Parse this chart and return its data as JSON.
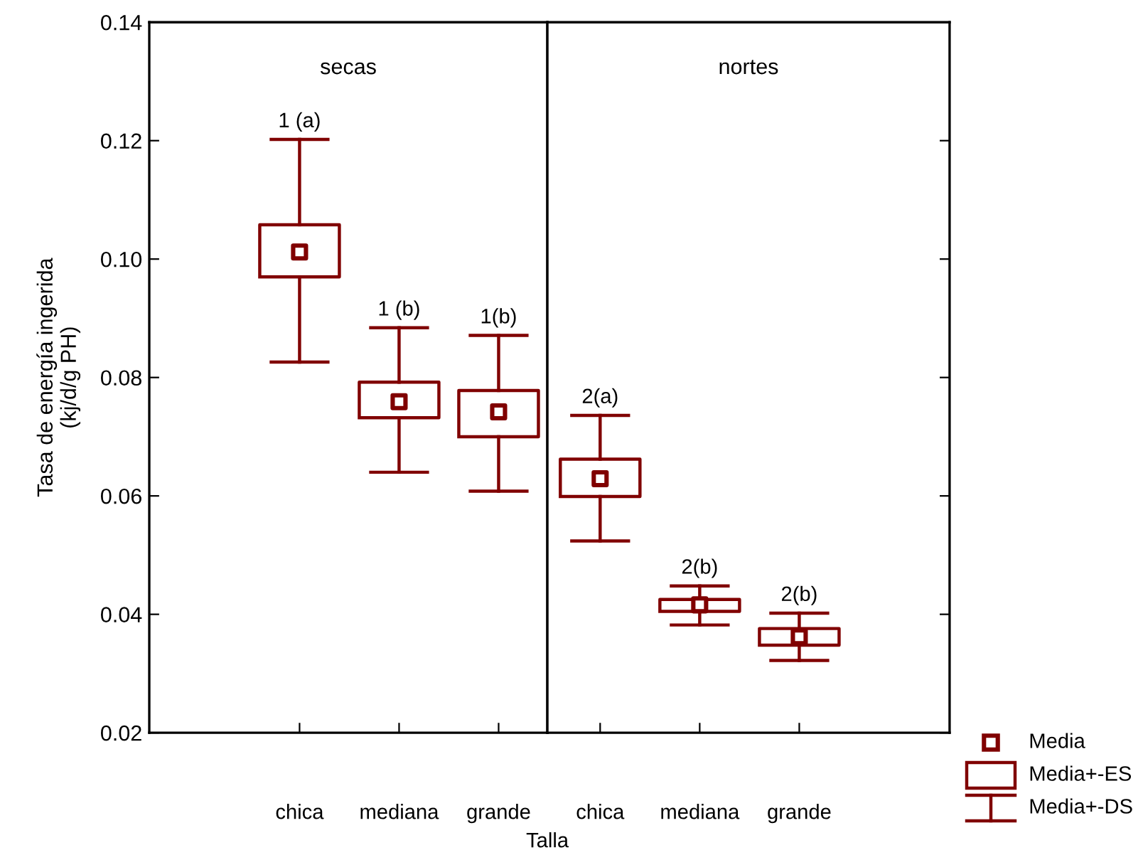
{
  "chart_data": [
    {
      "type": "box",
      "title": "secas",
      "ylabel": "Tasa de energía ingerida\n(kj/d/g PH)",
      "xlabel": "Talla",
      "categories": [
        "chica",
        "mediana",
        "grande"
      ],
      "series": [
        {
          "color": "#800000",
          "boxes": [
            {
              "low": 0.0826,
              "q1": 0.097,
              "median": 0.1012,
              "q3": 0.1058,
              "high": 0.1202
            },
            {
              "low": 0.064,
              "q1": 0.0732,
              "median": 0.0759,
              "q3": 0.0792,
              "high": 0.0884
            },
            {
              "low": 0.0608,
              "q1": 0.07,
              "median": 0.0742,
              "q3": 0.0778,
              "high": 0.0871
            }
          ]
        }
      ],
      "annotations": [
        {
          "text": "1 (a)",
          "x": "chica",
          "y": 0.1202
        },
        {
          "text": "1 (b)",
          "x": "mediana",
          "y": 0.0884
        },
        {
          "text": "1(b)",
          "x": "grande",
          "y": 0.0871
        }
      ],
      "ylim": [
        0.02,
        0.14
      ],
      "yticks": [
        {
          "value": 0.02,
          "label": "0.02"
        },
        {
          "value": 0.04,
          "label": "0.04"
        },
        {
          "value": 0.06,
          "label": "0.06"
        },
        {
          "value": 0.08,
          "label": "0.08"
        },
        {
          "value": 0.1,
          "label": "0.10"
        },
        {
          "value": 0.12,
          "label": "0.12"
        },
        {
          "value": 0.14,
          "label": "0.14"
        }
      ],
      "grid": false
    },
    {
      "type": "box",
      "title": "nortes",
      "categories": [
        "chica",
        "mediana",
        "grande"
      ],
      "series": [
        {
          "color": "#800000",
          "boxes": [
            {
              "low": 0.0524,
              "q1": 0.0599,
              "median": 0.0629,
              "q3": 0.0662,
              "high": 0.0736
            },
            {
              "low": 0.0382,
              "q1": 0.0405,
              "median": 0.0416,
              "q3": 0.0425,
              "high": 0.0448
            },
            {
              "low": 0.0322,
              "q1": 0.0348,
              "median": 0.0362,
              "q3": 0.0376,
              "high": 0.0402
            }
          ]
        }
      ],
      "annotations": [
        {
          "text": "2(a)",
          "x": "chica",
          "y": 0.0736
        },
        {
          "text": "2(b)",
          "x": "mediana",
          "y": 0.0448
        },
        {
          "text": "2(b)",
          "x": "grande",
          "y": 0.0402
        },
        "Media",
        "Media+-ES",
        "Media+-DS"
      ],
      "ylim": [
        0.02,
        0.14
      ],
      "yticks": [
        {
          "value": 0.02,
          "label": null
        },
        {
          "value": 0.04,
          "label": null
        },
        {
          "value": 0.06,
          "label": null
        },
        {
          "value": 0.08,
          "label": null
        },
        {
          "value": 0.1,
          "label": null
        },
        {
          "value": 0.12,
          "label": null
        },
        {
          "value": 0.14,
          "label": null
        }
      ],
      "tick_labels": "x",
      "grid": false
    }
  ]
}
